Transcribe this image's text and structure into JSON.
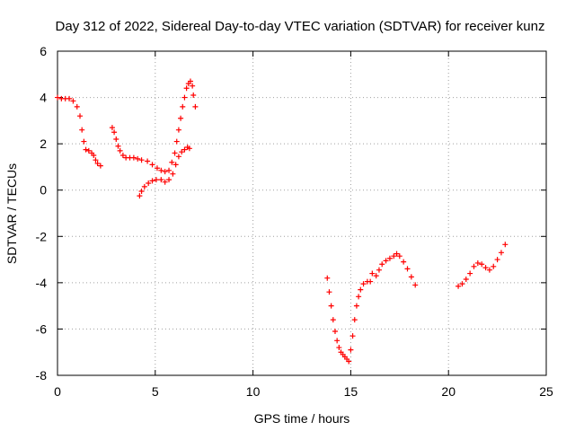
{
  "chart_data": {
    "type": "scatter",
    "title": "Day 312 of 2022, Sidereal Day-to-day VTEC variation (SDTVAR) for receiver kunz",
    "xlabel": "GPS time / hours",
    "ylabel": "SDTVAR / TECUs",
    "xlim": [
      0,
      25
    ],
    "ylim": [
      -8,
      6
    ],
    "xticks": [
      "0",
      "5",
      "10",
      "15",
      "20",
      "25"
    ],
    "yticks": [
      "-8",
      "-6",
      "-4",
      "-2",
      "0",
      "2",
      "4",
      "6"
    ],
    "grid": true,
    "marker": "+",
    "color": "#ff0000",
    "series": [
      {
        "points": [
          [
            0.0,
            4.0
          ],
          [
            0.2,
            3.95
          ],
          [
            0.4,
            3.95
          ],
          [
            0.6,
            3.95
          ],
          [
            0.8,
            3.85
          ],
          [
            1.0,
            3.6
          ],
          [
            1.15,
            3.2
          ],
          [
            1.25,
            2.6
          ],
          [
            1.35,
            2.1
          ],
          [
            1.45,
            1.75
          ],
          [
            1.6,
            1.7
          ],
          [
            1.75,
            1.6
          ],
          [
            1.85,
            1.5
          ],
          [
            1.95,
            1.3
          ],
          [
            2.05,
            1.15
          ],
          [
            2.2,
            1.05
          ],
          [
            2.8,
            2.7
          ],
          [
            2.9,
            2.5
          ],
          [
            3.0,
            2.2
          ],
          [
            3.1,
            1.9
          ],
          [
            3.2,
            1.7
          ],
          [
            3.35,
            1.5
          ],
          [
            3.5,
            1.4
          ],
          [
            3.7,
            1.4
          ],
          [
            3.9,
            1.4
          ],
          [
            4.1,
            1.35
          ],
          [
            4.3,
            1.3
          ],
          [
            4.6,
            1.25
          ],
          [
            4.85,
            1.1
          ],
          [
            5.1,
            0.95
          ],
          [
            5.3,
            0.85
          ],
          [
            5.5,
            0.8
          ],
          [
            5.7,
            0.85
          ],
          [
            5.85,
            1.2
          ],
          [
            6.0,
            1.6
          ],
          [
            6.1,
            2.1
          ],
          [
            6.2,
            2.6
          ],
          [
            6.3,
            3.1
          ],
          [
            6.4,
            3.6
          ],
          [
            6.5,
            4.0
          ],
          [
            6.6,
            4.4
          ],
          [
            6.7,
            4.6
          ],
          [
            6.8,
            4.7
          ],
          [
            6.9,
            4.5
          ],
          [
            6.95,
            4.1
          ],
          [
            7.05,
            3.6
          ],
          [
            4.2,
            -0.25
          ],
          [
            4.3,
            -0.05
          ],
          [
            4.45,
            0.15
          ],
          [
            4.65,
            0.3
          ],
          [
            4.85,
            0.4
          ],
          [
            5.05,
            0.45
          ],
          [
            5.3,
            0.45
          ],
          [
            5.5,
            0.35
          ],
          [
            5.7,
            0.45
          ],
          [
            5.9,
            0.7
          ],
          [
            6.05,
            1.1
          ],
          [
            6.2,
            1.45
          ],
          [
            6.35,
            1.65
          ],
          [
            6.5,
            1.75
          ],
          [
            6.65,
            1.85
          ],
          [
            6.75,
            1.8
          ],
          [
            13.8,
            -3.8
          ],
          [
            13.9,
            -4.4
          ],
          [
            14.0,
            -5.0
          ],
          [
            14.1,
            -5.6
          ],
          [
            14.2,
            -6.1
          ],
          [
            14.3,
            -6.5
          ],
          [
            14.4,
            -6.8
          ],
          [
            14.5,
            -7.0
          ],
          [
            14.6,
            -7.1
          ],
          [
            14.7,
            -7.2
          ],
          [
            14.8,
            -7.3
          ],
          [
            14.9,
            -7.4
          ],
          [
            15.0,
            -6.9
          ],
          [
            15.1,
            -6.3
          ],
          [
            15.2,
            -5.6
          ],
          [
            15.3,
            -5.0
          ],
          [
            15.4,
            -4.6
          ],
          [
            15.5,
            -4.3
          ],
          [
            15.65,
            -4.05
          ],
          [
            15.85,
            -3.95
          ],
          [
            16.0,
            -3.95
          ],
          [
            16.1,
            -3.6
          ],
          [
            16.3,
            -3.7
          ],
          [
            16.45,
            -3.45
          ],
          [
            16.6,
            -3.2
          ],
          [
            16.8,
            -3.05
          ],
          [
            17.0,
            -2.95
          ],
          [
            17.2,
            -2.85
          ],
          [
            17.35,
            -2.75
          ],
          [
            17.5,
            -2.85
          ],
          [
            17.7,
            -3.1
          ],
          [
            17.9,
            -3.4
          ],
          [
            18.1,
            -3.75
          ],
          [
            18.3,
            -4.1
          ],
          [
            20.5,
            -4.15
          ],
          [
            20.7,
            -4.05
          ],
          [
            20.9,
            -3.85
          ],
          [
            21.1,
            -3.6
          ],
          [
            21.3,
            -3.3
          ],
          [
            21.5,
            -3.15
          ],
          [
            21.7,
            -3.2
          ],
          [
            21.9,
            -3.35
          ],
          [
            22.1,
            -3.45
          ],
          [
            22.3,
            -3.3
          ],
          [
            22.5,
            -3.0
          ],
          [
            22.7,
            -2.7
          ],
          [
            22.9,
            -2.35
          ]
        ]
      }
    ]
  }
}
